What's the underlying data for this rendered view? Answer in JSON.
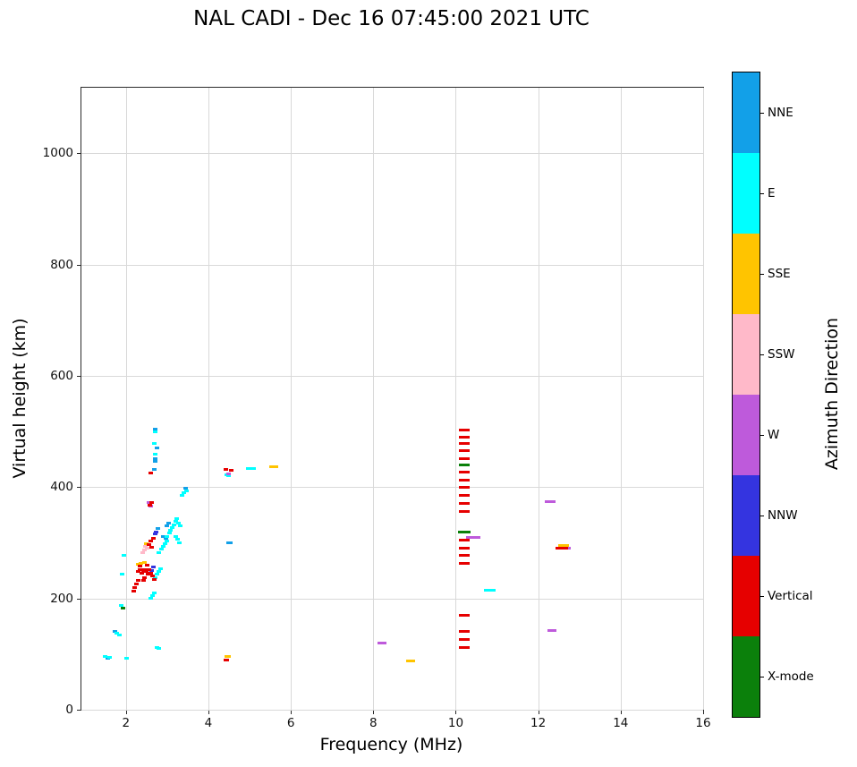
{
  "title": "NAL CADI - Dec 16 07:45:00 2021 UTC",
  "chart_data": {
    "type": "scatter",
    "title": "NAL CADI - Dec 16 07:45:00 2021 UTC",
    "xlabel": "Frequency (MHz)",
    "ylabel": "Virtual height (km)",
    "xlim": [
      0.92,
      16
    ],
    "ylim": [
      0,
      1118
    ],
    "xticks": [
      2,
      4,
      6,
      8,
      10,
      12,
      14,
      16
    ],
    "yticks": [
      0,
      200,
      400,
      600,
      800,
      1000
    ],
    "grid": true,
    "colorbar": {
      "title": "Azimuth Direction",
      "categories": [
        {
          "label": "NNE",
          "color": "#12A0E8"
        },
        {
          "label": "E",
          "color": "#00FFFF"
        },
        {
          "label": "SSE",
          "color": "#FFC400"
        },
        {
          "label": "SSW",
          "color": "#FFB9C9"
        },
        {
          "label": "W",
          "color": "#BE5ADB"
        },
        {
          "label": "NNW",
          "color": "#3434E0"
        },
        {
          "label": "Vertical",
          "color": "#E60000"
        },
        {
          "label": "X-mode",
          "color": "#0B800B"
        }
      ]
    },
    "series": [
      {
        "name": "NNE",
        "color": "#12A0E8",
        "points": [
          [
            1.55,
            93
          ],
          [
            1.74,
            140
          ],
          [
            2.68,
            432
          ],
          [
            2.7,
            446
          ],
          [
            2.72,
            452
          ],
          [
            2.7,
            505
          ],
          [
            2.76,
            470
          ],
          [
            2.9,
            312
          ],
          [
            2.96,
            308
          ],
          [
            3.0,
            330
          ],
          [
            3.04,
            335
          ],
          [
            2.78,
            325
          ],
          [
            3.44,
            398
          ],
          [
            4.52,
            300,
            7
          ]
        ]
      },
      {
        "name": "E",
        "color": "#00FFFF",
        "points": [
          [
            1.5,
            95
          ],
          [
            1.6,
            94
          ],
          [
            1.78,
            138
          ],
          [
            1.84,
            135
          ],
          [
            1.88,
            188
          ],
          [
            1.9,
            243
          ],
          [
            1.95,
            278
          ],
          [
            2.02,
            92
          ],
          [
            2.75,
            112
          ],
          [
            2.8,
            110
          ],
          [
            2.6,
            200
          ],
          [
            2.64,
            205
          ],
          [
            2.68,
            210
          ],
          [
            2.72,
            238
          ],
          [
            2.76,
            243
          ],
          [
            2.8,
            248
          ],
          [
            2.84,
            253
          ],
          [
            2.8,
            283
          ],
          [
            2.86,
            288
          ],
          [
            2.9,
            293
          ],
          [
            2.95,
            298
          ],
          [
            3.0,
            303
          ],
          [
            3.0,
            312
          ],
          [
            3.05,
            317
          ],
          [
            3.08,
            322
          ],
          [
            3.12,
            327
          ],
          [
            3.16,
            332
          ],
          [
            3.2,
            338
          ],
          [
            3.24,
            343
          ],
          [
            3.28,
            336
          ],
          [
            3.32,
            330
          ],
          [
            3.2,
            312
          ],
          [
            3.26,
            306
          ],
          [
            3.3,
            300
          ],
          [
            3.36,
            386
          ],
          [
            3.4,
            390
          ],
          [
            3.46,
            394
          ],
          [
            2.68,
            478
          ],
          [
            2.7,
            500
          ],
          [
            2.72,
            460
          ],
          [
            4.44,
            422
          ],
          [
            4.5,
            420
          ],
          [
            5.0,
            434,
            8
          ],
          [
            5.08,
            433,
            6
          ],
          [
            10.78,
            215,
            8
          ],
          [
            10.88,
            215,
            8
          ]
        ]
      },
      {
        "name": "SSE",
        "color": "#FFC400",
        "points": [
          [
            2.3,
            262
          ],
          [
            2.36,
            263
          ],
          [
            2.44,
            264
          ],
          [
            2.5,
            299
          ],
          [
            4.46,
            95,
            7
          ],
          [
            5.58,
            436,
            10
          ],
          [
            8.9,
            88,
            10
          ],
          [
            12.62,
            295,
            12
          ]
        ]
      },
      {
        "name": "SSW",
        "color": "#FFB9C9",
        "points": [
          [
            2.4,
            282
          ],
          [
            2.44,
            287
          ],
          [
            2.48,
            293
          ],
          [
            2.52,
            290
          ]
        ]
      },
      {
        "name": "W",
        "color": "#BE5ADB",
        "points": [
          [
            2.56,
            372
          ],
          [
            2.6,
            366
          ],
          [
            4.5,
            424
          ],
          [
            8.2,
            120,
            10
          ],
          [
            10.42,
            310,
            16
          ],
          [
            12.3,
            374,
            12
          ],
          [
            12.33,
            143,
            10
          ],
          [
            12.72,
            291,
            6
          ]
        ]
      },
      {
        "name": "NNW",
        "color": "#3434E0",
        "points": [
          [
            2.62,
            250
          ],
          [
            2.66,
            256
          ],
          [
            2.7,
            316
          ],
          [
            2.74,
            320
          ]
        ]
      },
      {
        "name": "Vertical",
        "color": "#E60000",
        "points": [
          [
            2.18,
            213
          ],
          [
            2.22,
            220
          ],
          [
            2.26,
            226
          ],
          [
            2.3,
            232
          ],
          [
            2.3,
            248
          ],
          [
            2.34,
            252
          ],
          [
            2.38,
            246
          ],
          [
            2.42,
            250
          ],
          [
            2.46,
            252
          ],
          [
            2.5,
            248
          ],
          [
            2.54,
            244
          ],
          [
            2.42,
            232
          ],
          [
            2.46,
            237
          ],
          [
            2.35,
            258
          ],
          [
            2.52,
            260
          ],
          [
            2.56,
            252
          ],
          [
            2.6,
            246
          ],
          [
            2.64,
            240
          ],
          [
            2.68,
            234
          ],
          [
            2.55,
            296
          ],
          [
            2.6,
            303
          ],
          [
            2.62,
            292
          ],
          [
            2.66,
            308
          ],
          [
            2.58,
            368
          ],
          [
            2.63,
            372
          ],
          [
            2.6,
            425
          ],
          [
            4.44,
            90,
            6
          ],
          [
            4.42,
            432
          ],
          [
            4.56,
            430
          ],
          [
            12.58,
            290,
            14
          ],
          [
            10.2,
            502,
            12
          ],
          [
            10.2,
            490,
            12
          ],
          [
            10.2,
            478,
            12
          ],
          [
            10.2,
            465,
            12
          ],
          [
            10.2,
            452,
            12
          ],
          [
            10.2,
            427,
            12
          ],
          [
            10.2,
            413,
            12
          ],
          [
            10.2,
            399,
            12
          ],
          [
            10.2,
            385,
            12
          ],
          [
            10.2,
            371,
            12
          ],
          [
            10.2,
            357,
            12
          ],
          [
            10.2,
            305,
            12
          ],
          [
            10.2,
            291,
            12
          ],
          [
            10.2,
            277,
            12
          ],
          [
            10.2,
            263,
            12
          ],
          [
            10.2,
            170,
            12
          ],
          [
            10.2,
            140,
            12
          ],
          [
            10.2,
            127,
            12
          ],
          [
            10.2,
            112,
            12
          ]
        ]
      },
      {
        "name": "X-mode",
        "color": "#0B800B",
        "points": [
          [
            1.92,
            183,
            5
          ],
          [
            10.2,
            440,
            12
          ],
          [
            10.2,
            320,
            14
          ]
        ]
      }
    ]
  }
}
